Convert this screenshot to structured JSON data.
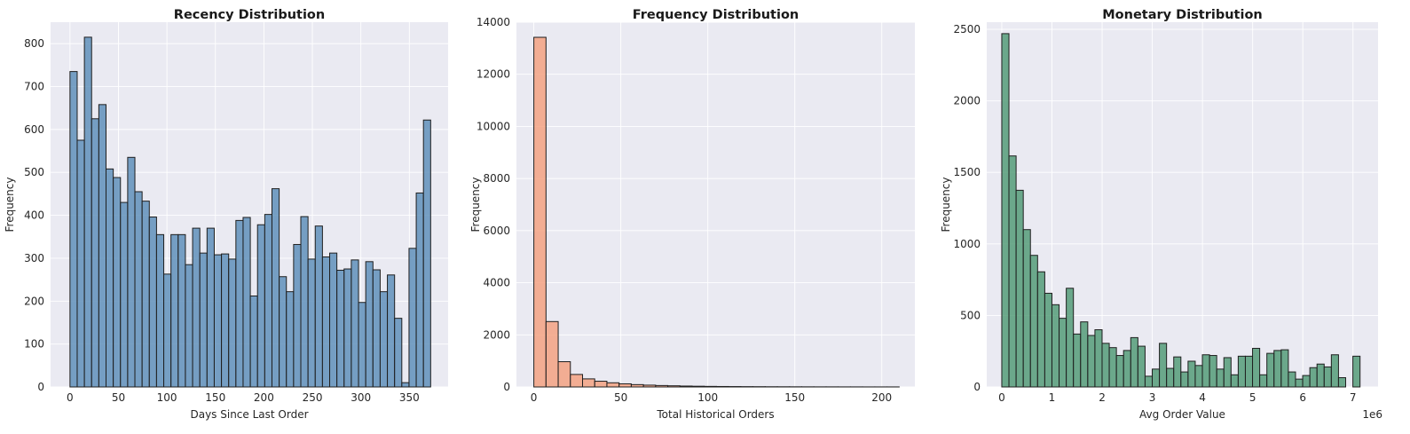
{
  "chart_data": [
    {
      "type": "bar",
      "title": "Recency Distribution",
      "xlabel": "Days Since Last Order",
      "ylabel": "Frequency",
      "bin_width": 7.44,
      "xlim": [
        -20,
        390
      ],
      "ylim": [
        0,
        850
      ],
      "xticks": [
        0,
        50,
        100,
        150,
        200,
        250,
        300,
        350
      ],
      "yticks": [
        0,
        100,
        200,
        300,
        400,
        500,
        600,
        700,
        800
      ],
      "color": "#5b8db8",
      "bins": [
        {
          "x": 0,
          "y": 735
        },
        {
          "x": 7.44,
          "y": 575
        },
        {
          "x": 14.88,
          "y": 815
        },
        {
          "x": 22.32,
          "y": 625
        },
        {
          "x": 29.76,
          "y": 658
        },
        {
          "x": 37.2,
          "y": 508
        },
        {
          "x": 44.64,
          "y": 488
        },
        {
          "x": 52.08,
          "y": 430
        },
        {
          "x": 59.52,
          "y": 535
        },
        {
          "x": 66.96,
          "y": 455
        },
        {
          "x": 74.4,
          "y": 433
        },
        {
          "x": 81.84,
          "y": 396
        },
        {
          "x": 89.28,
          "y": 355
        },
        {
          "x": 96.72,
          "y": 263
        },
        {
          "x": 104.16,
          "y": 355
        },
        {
          "x": 111.6,
          "y": 355
        },
        {
          "x": 119.04,
          "y": 285
        },
        {
          "x": 126.48,
          "y": 370
        },
        {
          "x": 133.92,
          "y": 312
        },
        {
          "x": 141.36,
          "y": 370
        },
        {
          "x": 148.8,
          "y": 308
        },
        {
          "x": 156.24,
          "y": 310
        },
        {
          "x": 163.68,
          "y": 298
        },
        {
          "x": 171.12,
          "y": 388
        },
        {
          "x": 178.56,
          "y": 395
        },
        {
          "x": 186.0,
          "y": 212
        },
        {
          "x": 193.44,
          "y": 378
        },
        {
          "x": 200.88,
          "y": 402
        },
        {
          "x": 208.32,
          "y": 462
        },
        {
          "x": 215.76,
          "y": 257
        },
        {
          "x": 223.2,
          "y": 222
        },
        {
          "x": 230.64,
          "y": 332
        },
        {
          "x": 238.08,
          "y": 397
        },
        {
          "x": 245.52,
          "y": 298
        },
        {
          "x": 252.96,
          "y": 375
        },
        {
          "x": 260.4,
          "y": 303
        },
        {
          "x": 267.84,
          "y": 312
        },
        {
          "x": 275.28,
          "y": 272
        },
        {
          "x": 282.72,
          "y": 275
        },
        {
          "x": 290.16,
          "y": 296
        },
        {
          "x": 297.6,
          "y": 197
        },
        {
          "x": 305.04,
          "y": 292
        },
        {
          "x": 312.48,
          "y": 273
        },
        {
          "x": 319.92,
          "y": 222
        },
        {
          "x": 327.36,
          "y": 261
        },
        {
          "x": 334.8,
          "y": 160
        },
        {
          "x": 342.24,
          "y": 10
        },
        {
          "x": 349.68,
          "y": 323
        },
        {
          "x": 357.12,
          "y": 452
        },
        {
          "x": 364.56,
          "y": 622
        }
      ]
    },
    {
      "type": "bar",
      "title": "Frequency Distribution",
      "xlabel": "Total Historical Orders",
      "ylabel": "Frequency",
      "bin_width": 7.0,
      "xlim": [
        -10,
        219
      ],
      "ylim": [
        0,
        14000
      ],
      "xticks": [
        0,
        50,
        100,
        150,
        200
      ],
      "yticks": [
        0,
        2000,
        4000,
        6000,
        8000,
        10000,
        12000,
        14000
      ],
      "color": "#f4a07e",
      "bins": [
        {
          "x": 0,
          "y": 13420
        },
        {
          "x": 7,
          "y": 2510
        },
        {
          "x": 14,
          "y": 970
        },
        {
          "x": 21,
          "y": 480
        },
        {
          "x": 28,
          "y": 310
        },
        {
          "x": 35,
          "y": 220
        },
        {
          "x": 42,
          "y": 160
        },
        {
          "x": 49,
          "y": 120
        },
        {
          "x": 56,
          "y": 90
        },
        {
          "x": 63,
          "y": 70
        },
        {
          "x": 70,
          "y": 55
        },
        {
          "x": 77,
          "y": 45
        },
        {
          "x": 84,
          "y": 35
        },
        {
          "x": 91,
          "y": 28
        },
        {
          "x": 98,
          "y": 22
        },
        {
          "x": 105,
          "y": 18
        },
        {
          "x": 112,
          "y": 15
        },
        {
          "x": 119,
          "y": 12
        },
        {
          "x": 126,
          "y": 10
        },
        {
          "x": 133,
          "y": 8
        },
        {
          "x": 140,
          "y": 7
        },
        {
          "x": 147,
          "y": 6
        },
        {
          "x": 154,
          "y": 5
        },
        {
          "x": 161,
          "y": 4
        },
        {
          "x": 168,
          "y": 4
        },
        {
          "x": 175,
          "y": 3
        },
        {
          "x": 182,
          "y": 3
        },
        {
          "x": 189,
          "y": 2
        },
        {
          "x": 196,
          "y": 2
        },
        {
          "x": 203,
          "y": 2
        }
      ]
    },
    {
      "type": "bar",
      "title": "Monetary Distribution",
      "xlabel": "Avg Order Value",
      "ylabel": "Frequency",
      "axis_offset_text": "1e6",
      "bin_width": 0.1428,
      "xlim": [
        -0.3,
        7.5
      ],
      "ylim": [
        0,
        2550
      ],
      "xticks": [
        0,
        1,
        2,
        3,
        4,
        5,
        6,
        7
      ],
      "yticks": [
        0,
        500,
        1000,
        1500,
        2000,
        2500
      ],
      "color": "#4f9a74",
      "bins": [
        {
          "x": 0,
          "y": 2470
        },
        {
          "x": 0.1428,
          "y": 1615
        },
        {
          "x": 0.2856,
          "y": 1375
        },
        {
          "x": 0.4284,
          "y": 1100
        },
        {
          "x": 0.5712,
          "y": 920
        },
        {
          "x": 0.714,
          "y": 805
        },
        {
          "x": 0.8568,
          "y": 655
        },
        {
          "x": 0.9996,
          "y": 575
        },
        {
          "x": 1.1424,
          "y": 480
        },
        {
          "x": 1.2852,
          "y": 690
        },
        {
          "x": 1.428,
          "y": 370
        },
        {
          "x": 1.5708,
          "y": 455
        },
        {
          "x": 1.7136,
          "y": 360
        },
        {
          "x": 1.8564,
          "y": 400
        },
        {
          "x": 1.9992,
          "y": 305
        },
        {
          "x": 2.142,
          "y": 275
        },
        {
          "x": 2.2848,
          "y": 220
        },
        {
          "x": 2.4276,
          "y": 255
        },
        {
          "x": 2.5704,
          "y": 345
        },
        {
          "x": 2.7132,
          "y": 285
        },
        {
          "x": 2.856,
          "y": 75
        },
        {
          "x": 2.9988,
          "y": 125
        },
        {
          "x": 3.1416,
          "y": 305
        },
        {
          "x": 3.2844,
          "y": 130
        },
        {
          "x": 3.4272,
          "y": 210
        },
        {
          "x": 3.57,
          "y": 105
        },
        {
          "x": 3.7128,
          "y": 180
        },
        {
          "x": 3.8556,
          "y": 150
        },
        {
          "x": 3.9984,
          "y": 225
        },
        {
          "x": 4.1412,
          "y": 220
        },
        {
          "x": 4.284,
          "y": 125
        },
        {
          "x": 4.4268,
          "y": 205
        },
        {
          "x": 4.5696,
          "y": 85
        },
        {
          "x": 4.7124,
          "y": 215
        },
        {
          "x": 4.8552,
          "y": 215
        },
        {
          "x": 4.998,
          "y": 270
        },
        {
          "x": 5.1408,
          "y": 85
        },
        {
          "x": 5.2836,
          "y": 235
        },
        {
          "x": 5.4264,
          "y": 255
        },
        {
          "x": 5.5692,
          "y": 260
        },
        {
          "x": 5.712,
          "y": 105
        },
        {
          "x": 5.8548,
          "y": 55
        },
        {
          "x": 5.9976,
          "y": 80
        },
        {
          "x": 6.1404,
          "y": 135
        },
        {
          "x": 6.2832,
          "y": 160
        },
        {
          "x": 6.426,
          "y": 140
        },
        {
          "x": 6.5688,
          "y": 225
        },
        {
          "x": 6.7116,
          "y": 65
        },
        {
          "x": 6.998,
          "y": 215
        }
      ]
    }
  ]
}
